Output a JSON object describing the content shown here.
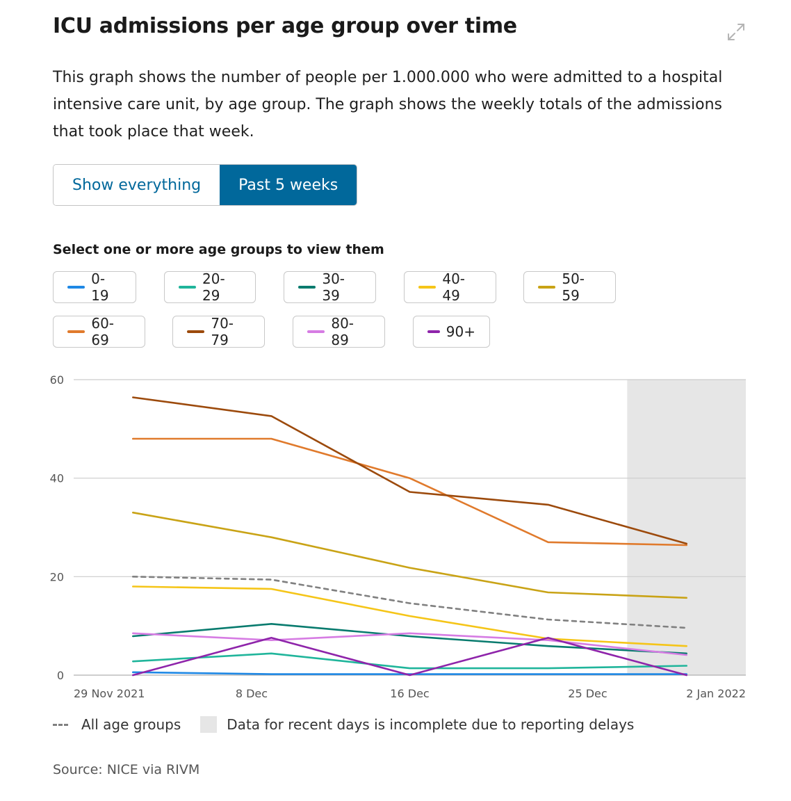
{
  "title": "ICU admissions per age group over time",
  "description": "This graph shows the number of people per 1.000.000 who were admitted to a hospital intensive care unit, by age group. The graph shows the weekly totals of the admissions that took place that week.",
  "toggle": {
    "all_label": "Show everything",
    "recent_label": "Past 5 weeks",
    "selected": "recent"
  },
  "select_label": "Select one or more age groups to view them",
  "legend": {
    "all_groups": "All age groups",
    "incomplete": "Data for recent days is incomplete due to reporting delays"
  },
  "source": "Source: NICE via RIVM",
  "chart_data": {
    "type": "line",
    "title": "ICU admissions per age group over time",
    "xlabel": "",
    "ylabel": "",
    "ylim": [
      0,
      60
    ],
    "yticks": [
      0,
      20,
      40,
      60
    ],
    "grid": true,
    "x_dates_days": [
      0,
      7,
      14,
      21,
      28
    ],
    "x_range_days": [
      -3,
      31
    ],
    "x_ticks": [
      {
        "day": -3,
        "label": "29 Nov 2021"
      },
      {
        "day": 6,
        "label": "8 Dec"
      },
      {
        "day": 14,
        "label": "16 Dec"
      },
      {
        "day": 23,
        "label": "25 Dec"
      },
      {
        "day": 31,
        "label": "2 Jan 2022"
      }
    ],
    "incomplete_from_day": 25,
    "series": [
      {
        "name": "0-19",
        "color": "#1e88e5",
        "values": [
          0.6,
          0.2,
          0.2,
          0.2,
          0.2
        ]
      },
      {
        "name": "20-29",
        "color": "#20b59b",
        "values": [
          2.8,
          4.4,
          1.4,
          1.4,
          1.9
        ]
      },
      {
        "name": "30-39",
        "color": "#087b6e",
        "values": [
          7.9,
          10.4,
          7.9,
          5.9,
          4.4
        ]
      },
      {
        "name": "40-49",
        "color": "#f5c518",
        "values": [
          18.0,
          17.5,
          12.0,
          7.4,
          5.9
        ]
      },
      {
        "name": "50-59",
        "color": "#c9a316",
        "values": [
          33.0,
          28.0,
          21.8,
          16.8,
          15.7
        ]
      },
      {
        "name": "60-69",
        "color": "#e07a2c",
        "values": [
          48.0,
          48.0,
          40.0,
          27.0,
          26.4
        ]
      },
      {
        "name": "70-79",
        "color": "#9c4a0c",
        "values": [
          56.4,
          52.6,
          37.2,
          34.6,
          26.7
        ]
      },
      {
        "name": "80-89",
        "color": "#d67ce3",
        "values": [
          8.5,
          7.1,
          8.5,
          7.1,
          4.1
        ]
      },
      {
        "name": "90+",
        "color": "#8e24aa",
        "values": [
          0,
          7.6,
          0,
          7.6,
          0
        ]
      },
      {
        "name": "All age groups",
        "color": "#808080",
        "dashed": true,
        "values": [
          20.0,
          19.4,
          14.6,
          11.3,
          9.6
        ]
      }
    ]
  }
}
